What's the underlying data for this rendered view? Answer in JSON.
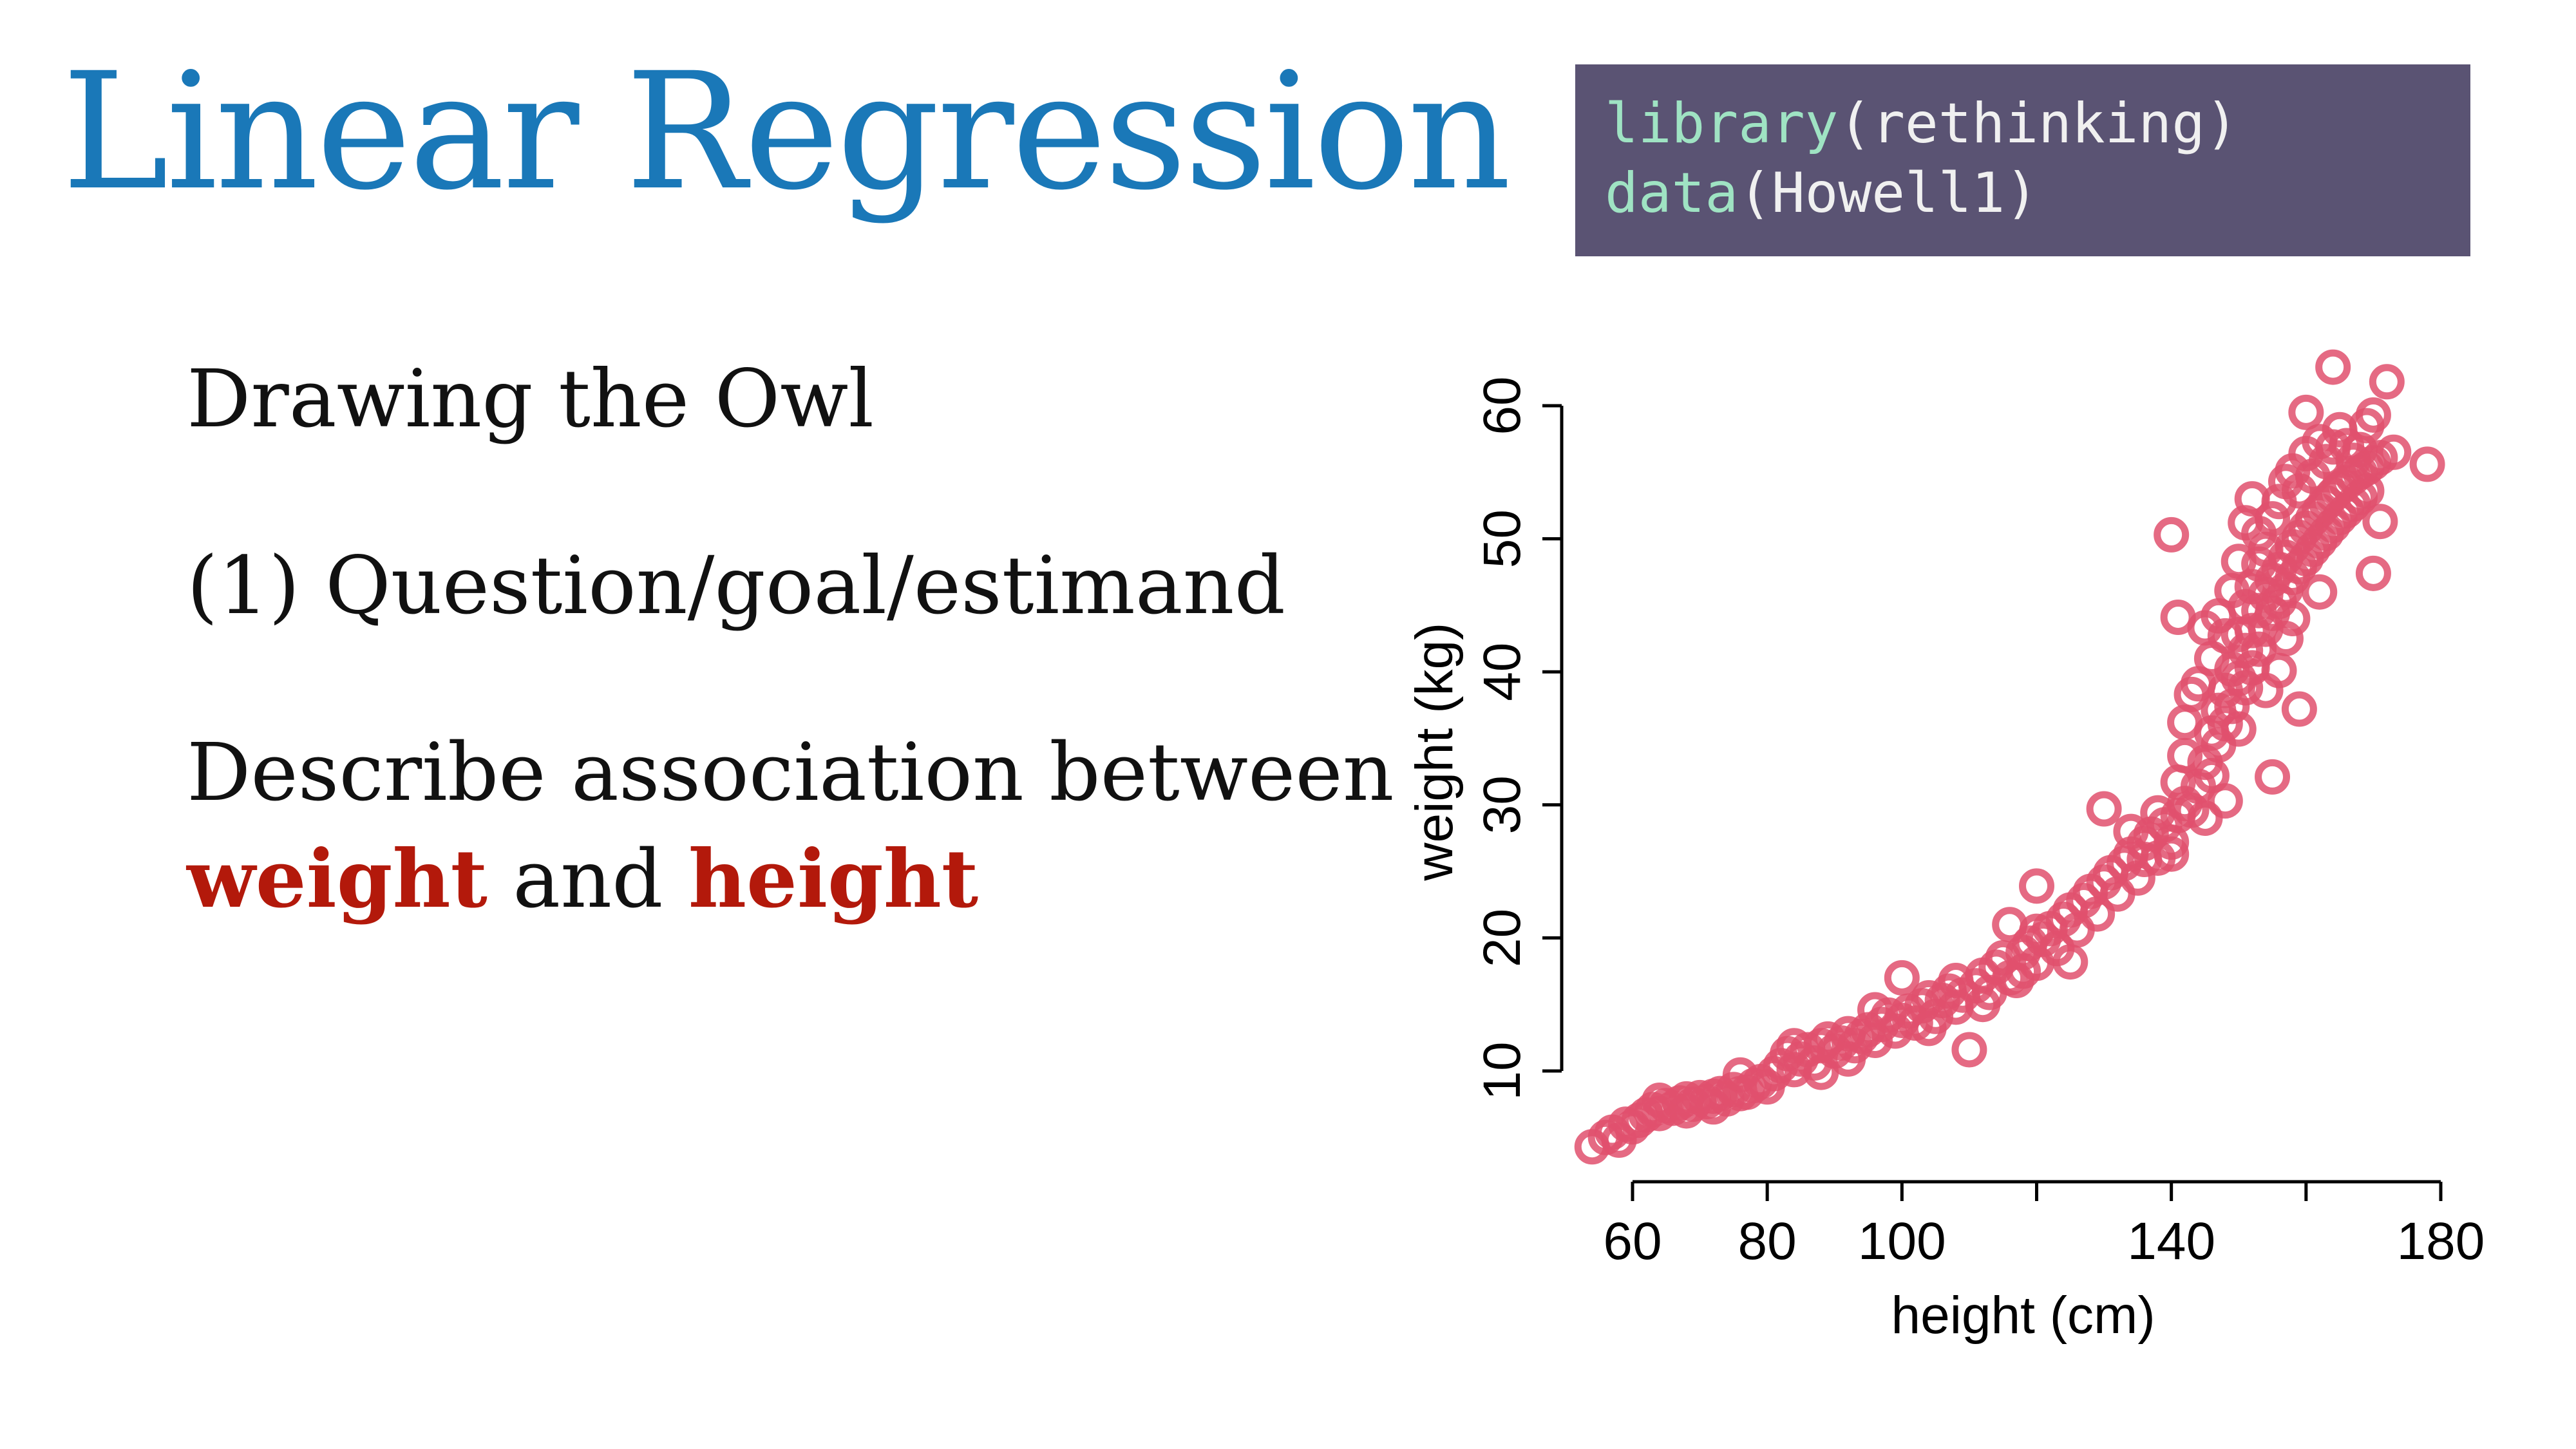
{
  "slide": {
    "title": "Linear Regression",
    "code": {
      "line1_fn": "library",
      "line1_arg": "(rethinking)",
      "line2_fn": "data",
      "line2_arg": "(Howell1)"
    },
    "bullets": {
      "b1": "Drawing the Owl",
      "b2": "(1) Question/goal/estimand",
      "b3": "Describe association between",
      "b4_var1": "weight",
      "b4_mid": " and ",
      "b4_var2": "height"
    },
    "colors": {
      "title": "#1a78b8",
      "highlight": "#b3190b",
      "code_bg": "#5a5373",
      "code_fn": "#9fe3c3",
      "points": "#e0506d"
    }
  },
  "chart_data": {
    "type": "scatter",
    "xlabel": "height (cm)",
    "ylabel": "weight (kg)",
    "x_ticks": [
      60,
      80,
      100,
      140,
      180
    ],
    "x_minor_ticks": [
      120,
      160
    ],
    "y_ticks": [
      10,
      20,
      30,
      40,
      50,
      60
    ],
    "xlim": [
      54,
      180
    ],
    "ylim": [
      4,
      63
    ],
    "grid": false,
    "marker": "open-circle",
    "color": "#e0506d",
    "points": [
      [
        54,
        4.3
      ],
      [
        56,
        5.0
      ],
      [
        57,
        5.4
      ],
      [
        58,
        4.8
      ],
      [
        59,
        6.0
      ],
      [
        60,
        5.8
      ],
      [
        61,
        6.3
      ],
      [
        62,
        6.7
      ],
      [
        63,
        7.1
      ],
      [
        64,
        6.8
      ],
      [
        65,
        7.4
      ],
      [
        66,
        7.2
      ],
      [
        67,
        7.6
      ],
      [
        68,
        7.9
      ],
      [
        69,
        7.5
      ],
      [
        70,
        8.0
      ],
      [
        71,
        7.7
      ],
      [
        72,
        8.1
      ],
      [
        73,
        8.3
      ],
      [
        74,
        7.9
      ],
      [
        75,
        8.6
      ],
      [
        76,
        9.7
      ],
      [
        77,
        8.4
      ],
      [
        78,
        8.9
      ],
      [
        79,
        9.2
      ],
      [
        80,
        8.8
      ],
      [
        81,
        9.8
      ],
      [
        82,
        10.4
      ],
      [
        83,
        11.3
      ],
      [
        84,
        10.1
      ],
      [
        85,
        10.9
      ],
      [
        86,
        11.6
      ],
      [
        87,
        10.6
      ],
      [
        88,
        11.9
      ],
      [
        89,
        12.4
      ],
      [
        90,
        11.5
      ],
      [
        91,
        12.1
      ],
      [
        92,
        12.8
      ],
      [
        93,
        11.9
      ],
      [
        94,
        12.6
      ],
      [
        95,
        13.1
      ],
      [
        96,
        12.3
      ],
      [
        97,
        13.5
      ],
      [
        98,
        14.2
      ],
      [
        99,
        13.0
      ],
      [
        100,
        13.8
      ],
      [
        100,
        17.0
      ],
      [
        101,
        14.5
      ],
      [
        102,
        13.6
      ],
      [
        103,
        14.9
      ],
      [
        104,
        15.5
      ],
      [
        105,
        14.1
      ],
      [
        106,
        15.3
      ],
      [
        107,
        16.0
      ],
      [
        108,
        14.8
      ],
      [
        109,
        15.7
      ],
      [
        110,
        11.6
      ],
      [
        111,
        16.4
      ],
      [
        112,
        17.2
      ],
      [
        113,
        15.9
      ],
      [
        114,
        17.8
      ],
      [
        115,
        18.5
      ],
      [
        116,
        17.0
      ],
      [
        117,
        16.8
      ],
      [
        118,
        18.9
      ],
      [
        119,
        19.6
      ],
      [
        120,
        18.1
      ],
      [
        120,
        23.9
      ],
      [
        121,
        19.9
      ],
      [
        122,
        20.7
      ],
      [
        123,
        19.2
      ],
      [
        124,
        21.4
      ],
      [
        125,
        22.1
      ],
      [
        125,
        18.2
      ],
      [
        126,
        20.6
      ],
      [
        127,
        22.8
      ],
      [
        128,
        23.5
      ],
      [
        129,
        21.8
      ],
      [
        130,
        24.2
      ],
      [
        130,
        29.7
      ],
      [
        131,
        24.9
      ],
      [
        132,
        23.3
      ],
      [
        133,
        25.6
      ],
      [
        134,
        26.3
      ],
      [
        135,
        24.5
      ],
      [
        136,
        27.1
      ],
      [
        137,
        27.8
      ],
      [
        138,
        26.0
      ],
      [
        139,
        28.5
      ],
      [
        140,
        27.2
      ],
      [
        140,
        26.3
      ],
      [
        141,
        29.2
      ],
      [
        141,
        31.7
      ],
      [
        142,
        30.1
      ],
      [
        142,
        36.2
      ],
      [
        143,
        29.6
      ],
      [
        143,
        38.3
      ],
      [
        144,
        31.4
      ],
      [
        144,
        39.1
      ],
      [
        145,
        33.2
      ],
      [
        145,
        29.0
      ],
      [
        145,
        43.3
      ],
      [
        146,
        35.4
      ],
      [
        146,
        32.2
      ],
      [
        146,
        41.0
      ],
      [
        147,
        37.1
      ],
      [
        147,
        34.5
      ],
      [
        147,
        44.2
      ],
      [
        148,
        38.6
      ],
      [
        148,
        36.1
      ],
      [
        148,
        42.7
      ],
      [
        148,
        30.3
      ],
      [
        149,
        40.2
      ],
      [
        149,
        37.4
      ],
      [
        149,
        46.1
      ],
      [
        150,
        39.5
      ],
      [
        150,
        42.8
      ],
      [
        150,
        35.7
      ],
      [
        150,
        48.3
      ],
      [
        151,
        41.6
      ],
      [
        151,
        44.9
      ],
      [
        151,
        38.8
      ],
      [
        151,
        51.2
      ],
      [
        152,
        43.1
      ],
      [
        152,
        46.4
      ],
      [
        152,
        40.3
      ],
      [
        152,
        53.0
      ],
      [
        153,
        44.6
      ],
      [
        153,
        48.1
      ],
      [
        153,
        41.7
      ],
      [
        153,
        50.4
      ],
      [
        154,
        45.8
      ],
      [
        154,
        43.2
      ],
      [
        154,
        49.2
      ],
      [
        154,
        38.6
      ],
      [
        155,
        46.9
      ],
      [
        155,
        44.4
      ],
      [
        155,
        51.5
      ],
      [
        155,
        32.1
      ],
      [
        156,
        47.7
      ],
      [
        156,
        45.3
      ],
      [
        156,
        52.8
      ],
      [
        156,
        40.1
      ],
      [
        157,
        48.6
      ],
      [
        157,
        46.2
      ],
      [
        157,
        54.3
      ],
      [
        157,
        42.5
      ],
      [
        158,
        49.4
      ],
      [
        158,
        47.1
      ],
      [
        158,
        55.1
      ],
      [
        158,
        44.0
      ],
      [
        159,
        50.1
      ],
      [
        159,
        47.9
      ],
      [
        159,
        53.6
      ],
      [
        159,
        37.2
      ],
      [
        160,
        50.8
      ],
      [
        160,
        48.5
      ],
      [
        160,
        56.4
      ],
      [
        160,
        59.5
      ],
      [
        161,
        51.5
      ],
      [
        161,
        49.2
      ],
      [
        161,
        54.7
      ],
      [
        162,
        52.1
      ],
      [
        162,
        49.8
      ],
      [
        162,
        57.3
      ],
      [
        162,
        46.0
      ],
      [
        163,
        52.7
      ],
      [
        163,
        50.4
      ],
      [
        163,
        55.8
      ],
      [
        164,
        53.3
      ],
      [
        164,
        51.0
      ],
      [
        164,
        56.9
      ],
      [
        164,
        62.9
      ],
      [
        165,
        53.8
      ],
      [
        165,
        51.6
      ],
      [
        165,
        58.2
      ],
      [
        166,
        54.2
      ],
      [
        166,
        52.1
      ],
      [
        166,
        57.0
      ],
      [
        167,
        54.6
      ],
      [
        167,
        52.6
      ],
      [
        167,
        55.9
      ],
      [
        168,
        55.0
      ],
      [
        168,
        53.1
      ],
      [
        168,
        56.7
      ],
      [
        169,
        55.3
      ],
      [
        169,
        53.6
      ],
      [
        169,
        58.5
      ],
      [
        170,
        55.7
      ],
      [
        170,
        47.4
      ],
      [
        170,
        59.3
      ],
      [
        171,
        56.1
      ],
      [
        171,
        51.3
      ],
      [
        172,
        61.8
      ],
      [
        173,
        56.5
      ],
      [
        178,
        55.6
      ],
      [
        140,
        50.3
      ],
      [
        141,
        44.1
      ],
      [
        142,
        33.7
      ],
      [
        138,
        29.4
      ],
      [
        136,
        25.9
      ],
      [
        134,
        28.0
      ],
      [
        120,
        20.5
      ],
      [
        118,
        17.5
      ],
      [
        116,
        21.0
      ],
      [
        112,
        15.0
      ],
      [
        108,
        16.8
      ],
      [
        104,
        13.2
      ],
      [
        96,
        14.6
      ],
      [
        92,
        10.9
      ],
      [
        88,
        9.9
      ],
      [
        84,
        11.9
      ],
      [
        76,
        8.3
      ],
      [
        72,
        7.3
      ],
      [
        68,
        7.0
      ],
      [
        64,
        7.8
      ]
    ]
  }
}
